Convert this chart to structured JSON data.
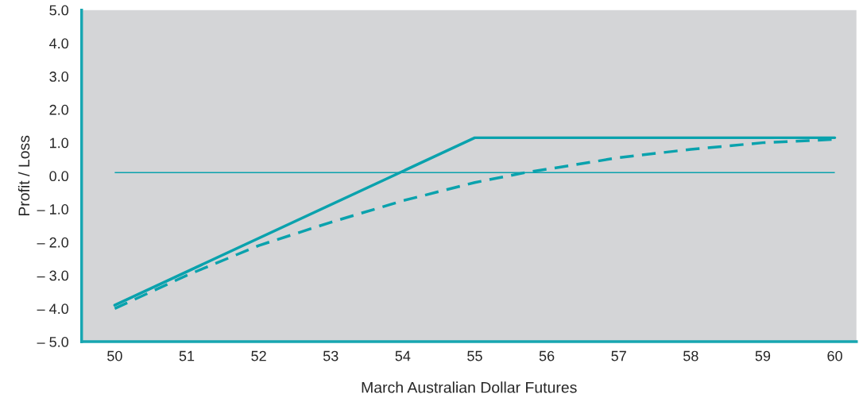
{
  "chart_data": {
    "type": "line",
    "xlabel": "March Australian Dollar Futures",
    "ylabel": "Profit / Loss",
    "series": [
      {
        "color": "#0aa2ad",
        "x": [
          50,
          55,
          60
        ],
        "values": [
          -3.9,
          1.15,
          1.15
        ],
        "line_style": "solid"
      },
      {
        "color": "#0aa2ad",
        "x": [
          50,
          51,
          52,
          53,
          54,
          55,
          55.7,
          56,
          57,
          58,
          59,
          60
        ],
        "values": [
          -4.0,
          -3.0,
          -2.1,
          -1.4,
          -0.75,
          -0.2,
          0.1,
          0.2,
          0.55,
          0.8,
          1.0,
          1.1
        ],
        "line_style": "dashed"
      }
    ],
    "ref_lines": [
      {
        "axis": "y",
        "value": 0.1,
        "color": "#0aa2ad",
        "line_style": "solid"
      }
    ],
    "xlim": [
      49.54,
      60.3
    ],
    "ylim": [
      -5,
      5
    ],
    "xticks": [
      50,
      51,
      52,
      53,
      54,
      55,
      56,
      57,
      58,
      59,
      60
    ],
    "yticks": [
      {
        "value": 5,
        "label": "5.0"
      },
      {
        "value": 4,
        "label": "4.0"
      },
      {
        "value": 3,
        "label": "3.0"
      },
      {
        "value": 2,
        "label": "2.0"
      },
      {
        "value": 1,
        "label": "1.0"
      },
      {
        "value": 0,
        "label": "0.0"
      },
      {
        "value": -1,
        "label": "– 1.0"
      },
      {
        "value": -2,
        "label": "– 2.0"
      },
      {
        "value": -3,
        "label": "– 3.0"
      },
      {
        "value": -4,
        "label": "– 4.0"
      },
      {
        "value": -5,
        "label": "– 5.0"
      }
    ],
    "grid": false,
    "legend": false,
    "marker": "none"
  }
}
